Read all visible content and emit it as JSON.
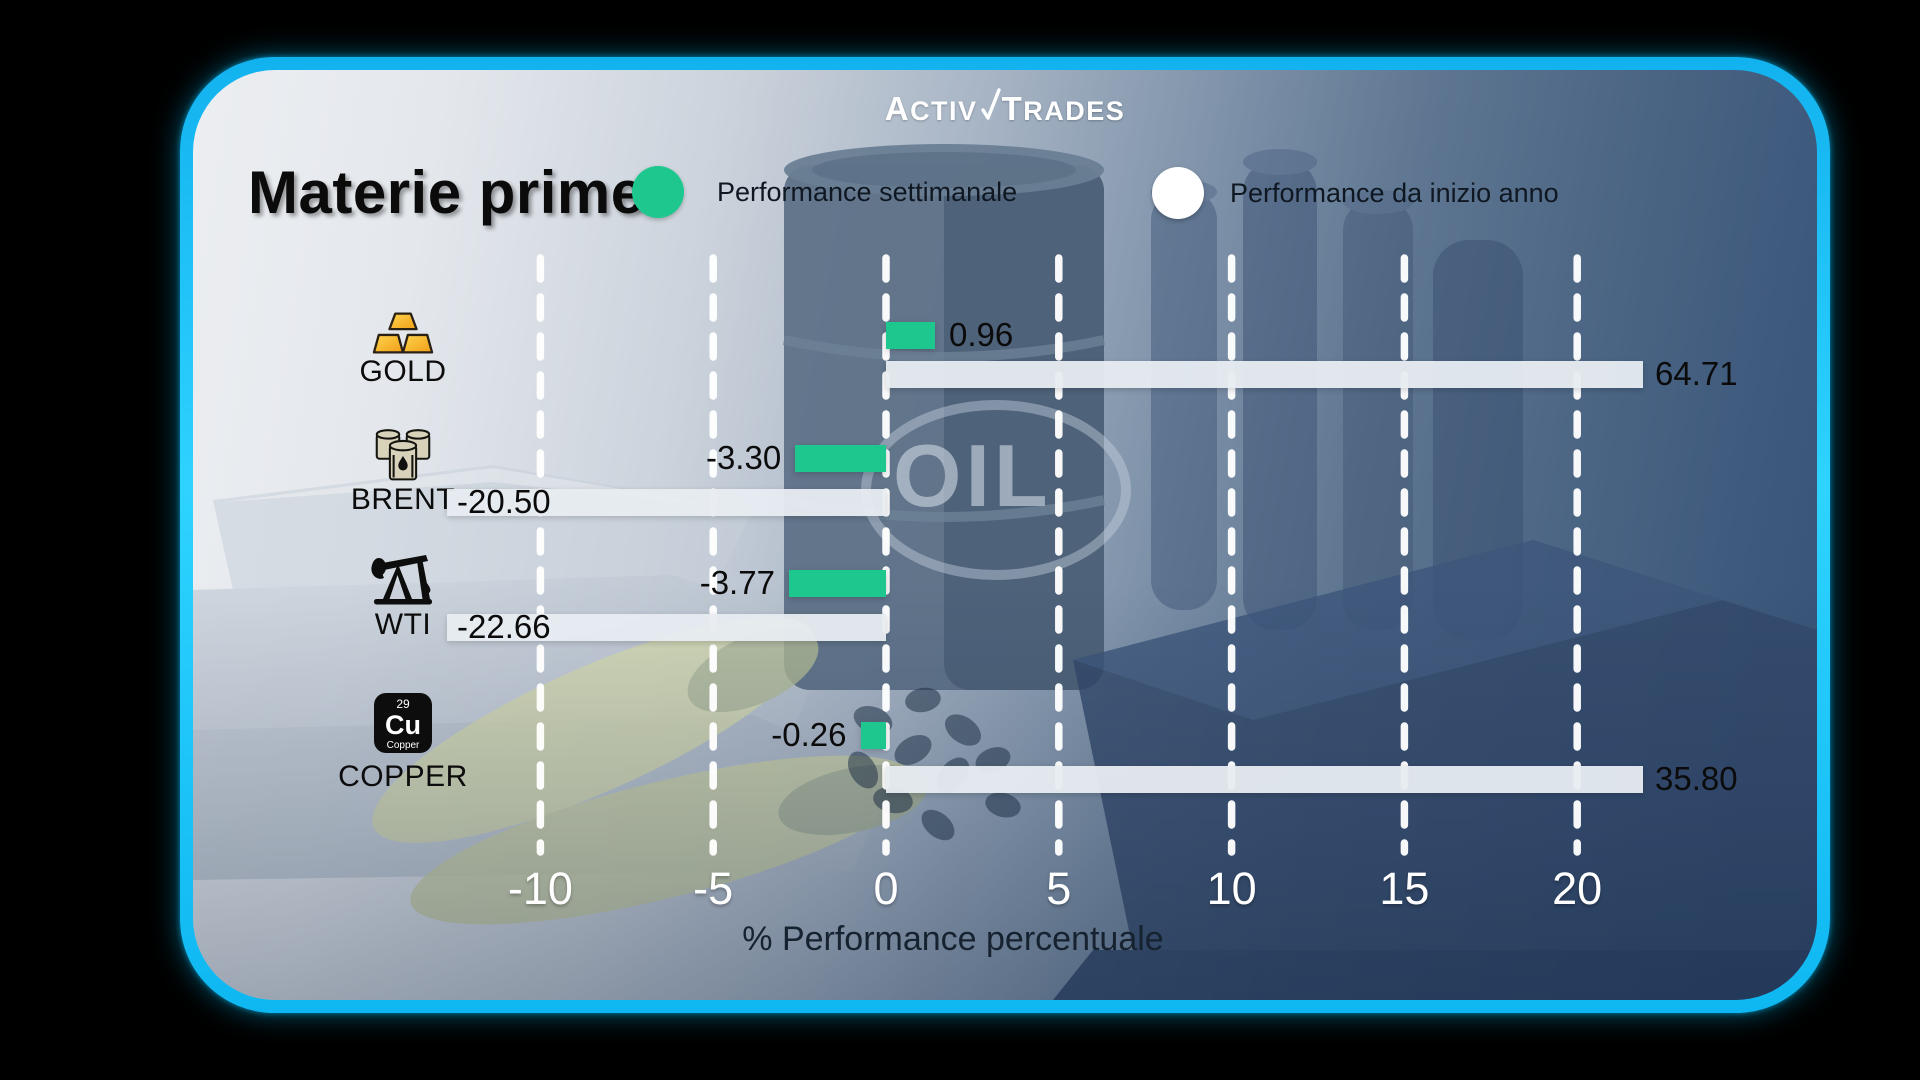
{
  "brand": {
    "logo_left": "ActivTrades"
  },
  "header": {
    "title": "Materie prime"
  },
  "legend": [
    {
      "label": "Performance settimanale",
      "color": "#1ec78e"
    },
    {
      "label": "Performance da inizio anno",
      "color": "#ffffff"
    }
  ],
  "background_label": "OIL",
  "copper_tile": {
    "number": "29",
    "symbol": "Cu",
    "name": "Copper"
  },
  "chart_data": {
    "type": "bar",
    "orientation": "horizontal",
    "title": "Materie prime",
    "categories": [
      "GOLD",
      "BRENT",
      "WTI",
      "COPPER"
    ],
    "icons": [
      "gold-bars",
      "oil-barrels",
      "oil-pump",
      "copper-element"
    ],
    "series": [
      {
        "name": "Performance settimanale",
        "color": "#1ec78e",
        "values": [
          0.96,
          -3.3,
          -3.77,
          -0.26
        ],
        "labels": [
          "0.96",
          "-3.30",
          "-3.77",
          "-0.26"
        ]
      },
      {
        "name": "Performance da inizio anno",
        "color": "#e8edf2",
        "values": [
          64.71,
          -20.5,
          -22.66,
          35.8
        ],
        "labels": [
          "64.71",
          "-20.50",
          "-22.66",
          "35.80"
        ]
      }
    ],
    "xticks": [
      -10,
      -5,
      0,
      5,
      10,
      15,
      20
    ],
    "xlabel": "% Performance percentuale",
    "xrange": [
      -12.7,
      21.9
    ],
    "grid": "vertical-dashed-white",
    "legend_position": "top",
    "bars_clipped_at_plot_edges": true
  }
}
